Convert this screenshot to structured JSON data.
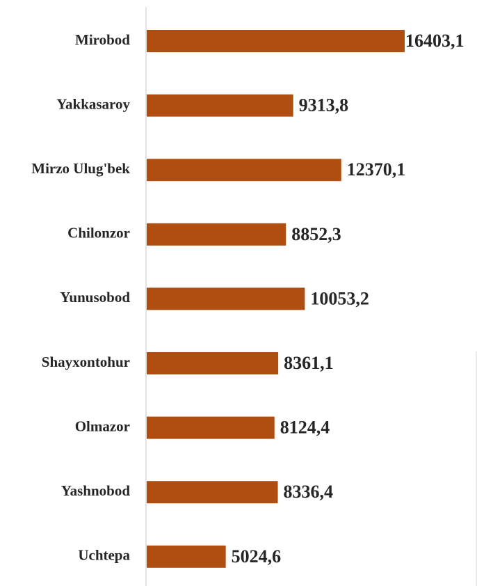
{
  "chart_data": {
    "type": "bar",
    "orientation": "horizontal",
    "categories": [
      "Mirobod",
      "Yakkasaroy",
      "Mirzo Ulug'bek",
      "Chilonzor",
      "Yunusobod",
      "Shayxontohur",
      "Olmazor",
      "Yashnobod",
      "Uchtepa"
    ],
    "values": [
      16403.1,
      9313.8,
      12370.1,
      8852.3,
      10053.2,
      8361.1,
      8124.4,
      8336.4,
      5024.6
    ],
    "value_labels": [
      "16403,1",
      "9313,8",
      "12370,1",
      "8852,3",
      "10053,2",
      "8361,1",
      "8124,4",
      "8336,4",
      "5024,6"
    ],
    "color": "#b04e12"
  }
}
